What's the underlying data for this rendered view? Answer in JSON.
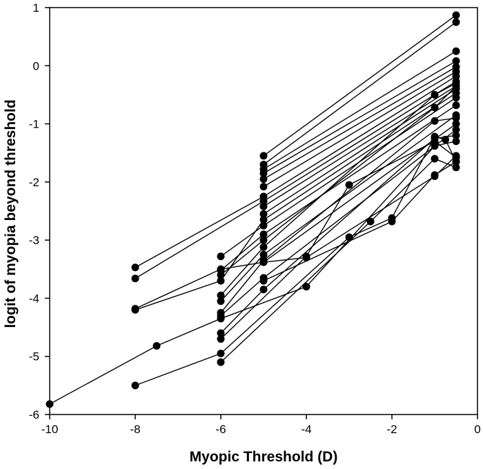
{
  "chart_data": {
    "type": "line",
    "title": "",
    "xlabel": "Myopic Threshold (D)",
    "ylabel": "logit of myopia beyond threshold",
    "xlim": [
      -10,
      0
    ],
    "ylim": [
      -6,
      1
    ],
    "xticks": [
      -10,
      -8,
      -6,
      -4,
      -2,
      0
    ],
    "yticks": [
      -6,
      -5,
      -4,
      -3,
      -2,
      -1,
      0,
      1
    ],
    "grid": false,
    "legend": "none",
    "marker": "filled-circle",
    "series": [
      {
        "name": "s1",
        "x": [
          -5,
          -0.5
        ],
        "y": [
          -1.55,
          0.87
        ]
      },
      {
        "name": "s2",
        "x": [
          -5,
          -0.5
        ],
        "y": [
          -1.7,
          0.75
        ]
      },
      {
        "name": "s3",
        "x": [
          -5,
          -0.5
        ],
        "y": [
          -1.78,
          0.25
        ]
      },
      {
        "name": "s4",
        "x": [
          -5,
          -0.5
        ],
        "y": [
          -1.85,
          0.08
        ]
      },
      {
        "name": "s5",
        "x": [
          -5,
          -0.5
        ],
        "y": [
          -1.95,
          -0.02
        ]
      },
      {
        "name": "s6",
        "x": [
          -5,
          -0.5
        ],
        "y": [
          -2.08,
          -0.1
        ]
      },
      {
        "name": "s7",
        "x": [
          -8,
          -5,
          -0.5
        ],
        "y": [
          -3.47,
          -2.25,
          -0.18
        ]
      },
      {
        "name": "s8",
        "x": [
          -8,
          -5,
          -0.5
        ],
        "y": [
          -3.66,
          -2.33,
          -0.27
        ]
      },
      {
        "name": "s9",
        "x": [
          -5,
          -0.5
        ],
        "y": [
          -2.42,
          -0.35
        ]
      },
      {
        "name": "s10",
        "x": [
          -5,
          -0.5
        ],
        "y": [
          -2.55,
          -0.4
        ]
      },
      {
        "name": "s11",
        "x": [
          -8,
          -6,
          -5,
          -0.5
        ],
        "y": [
          -4.2,
          -3.7,
          -2.65,
          -0.47
        ]
      },
      {
        "name": "s12",
        "x": [
          -6,
          -5,
          -0.5
        ],
        "y": [
          -3.28,
          -2.75,
          -0.55
        ]
      },
      {
        "name": "s13",
        "x": [
          -6,
          -5,
          -0.5
        ],
        "y": [
          -3.52,
          -2.9,
          -0.68
        ]
      },
      {
        "name": "s14",
        "x": [
          -6,
          -5,
          -1,
          -0.5
        ],
        "y": [
          -3.6,
          -3.0,
          -0.72,
          -0.35
        ]
      },
      {
        "name": "s15",
        "x": [
          -6,
          -5,
          -1,
          -0.5
        ],
        "y": [
          -3.95,
          -3.12,
          -0.5,
          -0.3
        ]
      },
      {
        "name": "s16",
        "x": [
          -6,
          -5,
          -0.5
        ],
        "y": [
          -4.05,
          -3.25,
          -0.85
        ]
      },
      {
        "name": "s17",
        "x": [
          -6,
          -5,
          -1,
          -0.5
        ],
        "y": [
          -4.25,
          -3.35,
          -0.95,
          -0.9
        ]
      },
      {
        "name": "s18",
        "x": [
          -8,
          -6,
          -5,
          -0.5
        ],
        "y": [
          -4.18,
          -3.5,
          -3.38,
          -1.0
        ]
      },
      {
        "name": "s19",
        "x": [
          -6,
          -5,
          -0.5
        ],
        "y": [
          -4.3,
          -3.65,
          -1.1
        ]
      },
      {
        "name": "s20",
        "x": [
          -6,
          -5,
          -1,
          -0.5
        ],
        "y": [
          -4.6,
          -3.85,
          -1.25,
          -1.2
        ]
      },
      {
        "name": "s21",
        "x": [
          -10,
          -7.5,
          -6,
          -4,
          -1,
          -0.5
        ],
        "y": [
          -5.82,
          -4.82,
          -4.35,
          -3.8,
          -1.38,
          -1.3
        ]
      },
      {
        "name": "s22",
        "x": [
          -6,
          -4,
          -3,
          -1,
          -0.5
        ],
        "y": [
          -4.7,
          -3.28,
          -2.05,
          -1.3,
          -1.58
        ]
      },
      {
        "name": "s23",
        "x": [
          -8,
          -6,
          -3,
          -2,
          -1,
          -0.75,
          -0.5
        ],
        "y": [
          -5.5,
          -4.95,
          -2.95,
          -2.62,
          -1.22,
          -1.27,
          -1.65
        ]
      },
      {
        "name": "s24",
        "x": [
          -6,
          -2.5,
          -1,
          -0.5
        ],
        "y": [
          -5.1,
          -2.68,
          -1.6,
          -1.75
        ]
      },
      {
        "name": "s25",
        "x": [
          -5,
          -2,
          -1,
          -0.5
        ],
        "y": [
          -3.7,
          -2.68,
          -1.88,
          -1.65
        ]
      },
      {
        "name": "s26",
        "x": [
          -5,
          -4,
          -1,
          -0.5
        ],
        "y": [
          -3.38,
          -3.3,
          -1.9,
          -1.55
        ]
      }
    ]
  }
}
